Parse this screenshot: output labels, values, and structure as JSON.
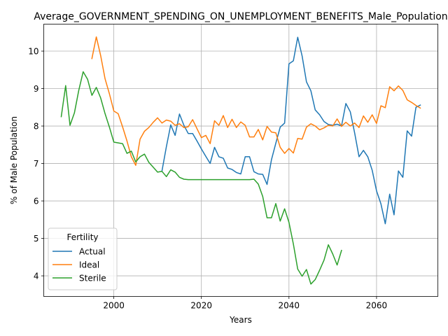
{
  "chart_data": {
    "type": "line",
    "title": "Average_GOVERNMENT_SPENDING_ON_UNEMPLOYMENT_BENEFITS_Male_Population",
    "xlabel": "Years",
    "ylabel": "% of Male Population",
    "xlim": [
      1984,
      2074
    ],
    "ylim": [
      3.45,
      10.72
    ],
    "xticks": [
      2000,
      2020,
      2040,
      2060
    ],
    "yticks": [
      4,
      5,
      6,
      7,
      8,
      9,
      10
    ],
    "grid": true,
    "legend": {
      "title": "Fertility",
      "placement": "lower-left"
    },
    "series": [
      {
        "name": "Actual",
        "color": "#1f77b4",
        "x": [
          2011,
          2012,
          2013,
          2014,
          2015,
          2016,
          2017,
          2018,
          2019,
          2020,
          2021,
          2022,
          2023,
          2024,
          2025,
          2026,
          2027,
          2028,
          2029,
          2030,
          2031,
          2032,
          2033,
          2034,
          2035,
          2036,
          2037,
          2038,
          2039,
          2040,
          2041,
          2042,
          2043,
          2044,
          2045,
          2046,
          2047,
          2048,
          2049,
          2050,
          2051,
          2052,
          2053,
          2054,
          2055,
          2056,
          2057,
          2058,
          2059,
          2060,
          2061,
          2062,
          2063,
          2064,
          2065,
          2066,
          2067,
          2068,
          2069,
          2070
        ],
        "y": [
          6.8,
          7.45,
          8.03,
          7.75,
          8.32,
          8.02,
          7.8,
          7.8,
          7.6,
          7.39,
          7.19,
          7.0,
          7.43,
          7.18,
          7.14,
          6.88,
          6.84,
          6.76,
          6.72,
          7.18,
          7.18,
          6.78,
          6.72,
          6.71,
          6.44,
          7.1,
          7.54,
          7.97,
          8.08,
          9.66,
          9.74,
          10.37,
          9.87,
          9.18,
          8.94,
          8.43,
          8.3,
          8.12,
          8.04,
          8.02,
          8.05,
          8.0,
          8.6,
          8.38,
          7.82,
          7.18,
          7.35,
          7.18,
          6.82,
          6.27,
          5.92,
          5.39,
          6.18,
          5.63,
          6.8,
          6.63,
          7.87,
          7.73,
          8.5,
          8.56
        ]
      },
      {
        "name": "Ideal",
        "color": "#ff7f0e",
        "x": [
          1995,
          1996,
          1997,
          1998,
          1999,
          2000,
          2001,
          2002,
          2003,
          2004,
          2005,
          2006,
          2007,
          2008,
          2009,
          2010,
          2011,
          2012,
          2013,
          2014,
          2015,
          2016,
          2017,
          2018,
          2019,
          2020,
          2021,
          2022,
          2023,
          2024,
          2025,
          2026,
          2027,
          2028,
          2029,
          2030,
          2031,
          2032,
          2033,
          2034,
          2035,
          2036,
          2037,
          2038,
          2039,
          2040,
          2041,
          2042,
          2043,
          2044,
          2045,
          2046,
          2047,
          2048,
          2049,
          2050,
          2051,
          2052,
          2053,
          2054,
          2055,
          2056,
          2057,
          2058,
          2059,
          2060,
          2061,
          2062,
          2063,
          2064,
          2065,
          2066,
          2067,
          2068,
          2069,
          2070
        ],
        "y": [
          9.8,
          10.38,
          9.88,
          9.26,
          8.86,
          8.4,
          8.33,
          7.98,
          7.6,
          7.18,
          6.95,
          7.65,
          7.86,
          7.96,
          8.1,
          8.22,
          8.08,
          8.16,
          8.13,
          8.02,
          8.06,
          7.96,
          7.98,
          8.17,
          7.93,
          7.69,
          7.75,
          7.53,
          8.14,
          8.02,
          8.28,
          7.96,
          8.18,
          7.96,
          8.11,
          8.02,
          7.71,
          7.71,
          7.91,
          7.63,
          7.99,
          7.84,
          7.82,
          7.43,
          7.27,
          7.4,
          7.28,
          7.67,
          7.65,
          7.97,
          8.06,
          8.0,
          7.9,
          7.95,
          8.02,
          8.0,
          8.19,
          7.99,
          8.1,
          8.0,
          8.08,
          7.96,
          8.27,
          8.1,
          8.3,
          8.07,
          8.54,
          8.49,
          9.05,
          8.94,
          9.07,
          8.95,
          8.7,
          8.63,
          8.55,
          8.48
        ]
      },
      {
        "name": "Sterile",
        "color": "#2ca02c",
        "x": [
          1988,
          1989,
          1990,
          1991,
          1992,
          1993,
          1994,
          1995,
          1996,
          1997,
          1998,
          1999,
          2000,
          2001,
          2002,
          2003,
          2004,
          2005,
          2006,
          2007,
          2008,
          2009,
          2010,
          2011,
          2012,
          2013,
          2014,
          2015,
          2016,
          2017,
          2018,
          2019,
          2020,
          2021,
          2022,
          2023,
          2024,
          2025,
          2026,
          2027,
          2028,
          2029,
          2030,
          2031,
          2032,
          2033,
          2034,
          2035,
          2036,
          2037,
          2038,
          2039,
          2040,
          2041,
          2042,
          2043,
          2044,
          2045,
          2046,
          2047,
          2048,
          2049,
          2050,
          2051,
          2052
        ],
        "y": [
          8.25,
          9.08,
          8.02,
          8.35,
          8.95,
          9.45,
          9.25,
          8.82,
          9.03,
          8.75,
          8.33,
          7.97,
          7.57,
          7.55,
          7.53,
          7.27,
          7.33,
          7.04,
          7.18,
          7.25,
          7.03,
          6.9,
          6.77,
          6.79,
          6.65,
          6.83,
          6.77,
          6.63,
          6.58,
          6.57,
          6.57,
          6.57,
          6.57,
          6.57,
          6.57,
          6.57,
          6.57,
          6.57,
          6.57,
          6.57,
          6.57,
          6.57,
          6.57,
          6.57,
          6.58,
          6.45,
          6.12,
          5.55,
          5.55,
          5.93,
          5.46,
          5.79,
          5.43,
          4.85,
          4.18,
          3.99,
          4.17,
          3.78,
          3.9,
          4.15,
          4.42,
          4.83,
          4.58,
          4.29,
          4.68
        ]
      }
    ]
  }
}
